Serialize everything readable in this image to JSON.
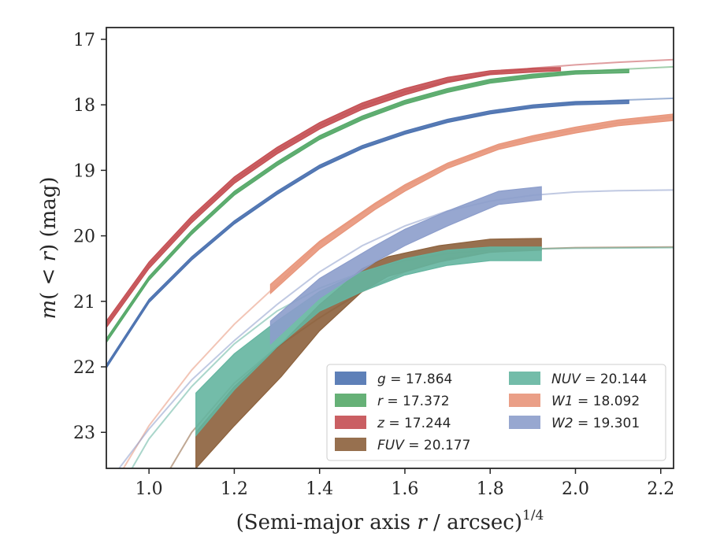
{
  "chart_data": {
    "type": "line",
    "title": "",
    "xlabel": "(Semi-major axis r / arcsec)^{1/4}",
    "xlabel_parts": {
      "main": "(Semi-major axis ",
      "var": "r",
      "rest": " / arcsec)",
      "sup": "1/4"
    },
    "ylabel": "m(<r) (mag)",
    "ylabel_parts": {
      "m": "m",
      "open": "(",
      "lt": " < ",
      "r": "r",
      "close": ")",
      "unit": " (mag)"
    },
    "xlim": [
      0.9,
      2.23
    ],
    "ylim": [
      23.55,
      16.82
    ],
    "y_inverted": true,
    "x_ticks": [
      1.0,
      1.2,
      1.4,
      1.6,
      1.8,
      2.0,
      2.2
    ],
    "x_tick_labels": [
      "1.0",
      "1.2",
      "1.4",
      "1.6",
      "1.8",
      "2.0",
      "2.2"
    ],
    "y_ticks": [
      17,
      18,
      19,
      20,
      21,
      22,
      23
    ],
    "y_tick_labels": [
      "17",
      "18",
      "19",
      "20",
      "21",
      "22",
      "23"
    ],
    "grid": false,
    "legend_position": "lower-right",
    "series": [
      {
        "name": "g = 17.864",
        "label_var": "g",
        "label_value": "17.864",
        "color": "#4c72b0",
        "model": [
          [
            0.9,
            22.0
          ],
          [
            1.0,
            21.0
          ],
          [
            1.1,
            20.35
          ],
          [
            1.2,
            19.8
          ],
          [
            1.3,
            19.35
          ],
          [
            1.4,
            18.95
          ],
          [
            1.5,
            18.65
          ],
          [
            1.6,
            18.43
          ],
          [
            1.7,
            18.25
          ],
          [
            1.8,
            18.12
          ],
          [
            1.9,
            18.03
          ],
          [
            2.0,
            17.97
          ],
          [
            2.1,
            17.93
          ],
          [
            2.23,
            17.9
          ]
        ],
        "band_upper": [
          [
            0.9,
            21.97
          ],
          [
            1.0,
            20.97
          ],
          [
            1.1,
            20.32
          ],
          [
            1.2,
            19.77
          ],
          [
            1.3,
            19.32
          ],
          [
            1.4,
            18.92
          ],
          [
            1.5,
            18.62
          ],
          [
            1.6,
            18.4
          ],
          [
            1.7,
            18.22
          ],
          [
            1.8,
            18.09
          ],
          [
            1.9,
            18.0
          ],
          [
            2.0,
            17.95
          ],
          [
            2.125,
            17.93
          ]
        ],
        "band_lower": [
          [
            0.9,
            22.02
          ],
          [
            1.0,
            21.02
          ],
          [
            1.1,
            20.37
          ],
          [
            1.2,
            19.82
          ],
          [
            1.3,
            19.37
          ],
          [
            1.4,
            18.97
          ],
          [
            1.5,
            18.67
          ],
          [
            1.6,
            18.45
          ],
          [
            1.7,
            18.27
          ],
          [
            1.8,
            18.14
          ],
          [
            1.9,
            18.05
          ],
          [
            2.0,
            18.0
          ],
          [
            2.125,
            17.98
          ]
        ]
      },
      {
        "name": "r = 17.372",
        "label_var": "r",
        "label_value": "17.372",
        "color": "#55a868",
        "model": [
          [
            0.9,
            21.6
          ],
          [
            1.0,
            20.65
          ],
          [
            1.1,
            19.95
          ],
          [
            1.2,
            19.35
          ],
          [
            1.3,
            18.9
          ],
          [
            1.4,
            18.5
          ],
          [
            1.5,
            18.2
          ],
          [
            1.6,
            17.96
          ],
          [
            1.7,
            17.78
          ],
          [
            1.8,
            17.64
          ],
          [
            1.9,
            17.56
          ],
          [
            2.0,
            17.5
          ],
          [
            2.1,
            17.46
          ],
          [
            2.23,
            17.42
          ]
        ],
        "band_upper": [
          [
            0.9,
            21.57
          ],
          [
            1.0,
            20.62
          ],
          [
            1.1,
            19.92
          ],
          [
            1.2,
            19.32
          ],
          [
            1.3,
            18.87
          ],
          [
            1.4,
            18.47
          ],
          [
            1.5,
            18.17
          ],
          [
            1.6,
            17.93
          ],
          [
            1.7,
            17.75
          ],
          [
            1.8,
            17.61
          ],
          [
            1.9,
            17.53
          ],
          [
            2.0,
            17.48
          ],
          [
            2.125,
            17.46
          ]
        ],
        "band_lower": [
          [
            0.9,
            21.63
          ],
          [
            1.0,
            20.68
          ],
          [
            1.1,
            19.98
          ],
          [
            1.2,
            19.38
          ],
          [
            1.3,
            18.93
          ],
          [
            1.4,
            18.53
          ],
          [
            1.5,
            18.23
          ],
          [
            1.6,
            17.99
          ],
          [
            1.7,
            17.81
          ],
          [
            1.8,
            17.67
          ],
          [
            1.9,
            17.59
          ],
          [
            2.0,
            17.53
          ],
          [
            2.125,
            17.51
          ]
        ]
      },
      {
        "name": "z = 17.244",
        "label_var": "z",
        "label_value": "17.244",
        "color": "#c44e52",
        "model": [
          [
            0.9,
            21.35
          ],
          [
            1.0,
            20.45
          ],
          [
            1.1,
            19.75
          ],
          [
            1.2,
            19.15
          ],
          [
            1.3,
            18.7
          ],
          [
            1.4,
            18.32
          ],
          [
            1.5,
            18.02
          ],
          [
            1.6,
            17.8
          ],
          [
            1.7,
            17.64
          ],
          [
            1.8,
            17.52
          ],
          [
            1.9,
            17.44
          ],
          [
            2.0,
            17.39
          ],
          [
            2.1,
            17.35
          ],
          [
            2.23,
            17.31
          ]
        ],
        "band_upper": [
          [
            0.9,
            21.3
          ],
          [
            1.0,
            20.4
          ],
          [
            1.1,
            19.7
          ],
          [
            1.2,
            19.1
          ],
          [
            1.3,
            18.65
          ],
          [
            1.4,
            18.27
          ],
          [
            1.5,
            17.97
          ],
          [
            1.6,
            17.75
          ],
          [
            1.7,
            17.58
          ],
          [
            1.8,
            17.48
          ],
          [
            1.9,
            17.44
          ],
          [
            1.965,
            17.43
          ]
        ],
        "band_lower": [
          [
            0.9,
            21.4
          ],
          [
            1.0,
            20.5
          ],
          [
            1.1,
            19.8
          ],
          [
            1.2,
            19.2
          ],
          [
            1.3,
            18.75
          ],
          [
            1.4,
            18.37
          ],
          [
            1.5,
            18.07
          ],
          [
            1.6,
            17.85
          ],
          [
            1.7,
            17.66
          ],
          [
            1.8,
            17.54
          ],
          [
            1.9,
            17.5
          ],
          [
            1.965,
            17.48
          ]
        ]
      },
      {
        "name": "FUV = 20.177",
        "label_var": "FUV",
        "label_value": "20.177",
        "color": "#8c613c",
        "model": [
          [
            1.05,
            23.55
          ],
          [
            1.1,
            23.0
          ],
          [
            1.2,
            22.25
          ],
          [
            1.3,
            21.7
          ],
          [
            1.4,
            21.25
          ],
          [
            1.5,
            20.85
          ],
          [
            1.6,
            20.55
          ],
          [
            1.7,
            20.35
          ],
          [
            1.8,
            20.25
          ],
          [
            1.9,
            20.2
          ],
          [
            2.0,
            20.18
          ],
          [
            2.23,
            20.17
          ]
        ],
        "band_upper": [
          [
            1.11,
            23.0
          ],
          [
            1.2,
            22.3
          ],
          [
            1.31,
            21.65
          ],
          [
            1.4,
            21.05
          ],
          [
            1.5,
            20.5
          ],
          [
            1.56,
            20.32
          ],
          [
            1.68,
            20.15
          ],
          [
            1.8,
            20.05
          ],
          [
            1.92,
            20.04
          ]
        ],
        "band_lower": [
          [
            1.11,
            23.55
          ],
          [
            1.2,
            22.9
          ],
          [
            1.31,
            22.15
          ],
          [
            1.4,
            21.45
          ],
          [
            1.5,
            20.85
          ],
          [
            1.56,
            20.62
          ],
          [
            1.68,
            20.4
          ],
          [
            1.8,
            20.25
          ],
          [
            1.92,
            20.22
          ]
        ]
      },
      {
        "name": "NUV = 20.144",
        "label_var": "NUV",
        "label_value": "20.144",
        "color": "#64b5a0",
        "model": [
          [
            0.96,
            23.55
          ],
          [
            1.0,
            23.1
          ],
          [
            1.1,
            22.3
          ],
          [
            1.2,
            21.65
          ],
          [
            1.3,
            21.15
          ],
          [
            1.4,
            20.8
          ],
          [
            1.5,
            20.55
          ],
          [
            1.6,
            20.38
          ],
          [
            1.7,
            20.27
          ],
          [
            1.8,
            20.22
          ],
          [
            1.9,
            20.2
          ],
          [
            2.0,
            20.19
          ],
          [
            2.23,
            20.18
          ]
        ],
        "band_upper": [
          [
            1.11,
            22.4
          ],
          [
            1.2,
            21.8
          ],
          [
            1.3,
            21.3
          ],
          [
            1.4,
            20.85
          ],
          [
            1.5,
            20.55
          ],
          [
            1.6,
            20.35
          ],
          [
            1.7,
            20.22
          ],
          [
            1.8,
            20.17
          ],
          [
            1.92,
            20.17
          ]
        ],
        "band_lower": [
          [
            1.11,
            23.05
          ],
          [
            1.2,
            22.35
          ],
          [
            1.3,
            21.7
          ],
          [
            1.4,
            21.15
          ],
          [
            1.5,
            20.85
          ],
          [
            1.6,
            20.6
          ],
          [
            1.7,
            20.45
          ],
          [
            1.8,
            20.38
          ],
          [
            1.92,
            20.38
          ]
        ]
      },
      {
        "name": "W1 = 18.092",
        "label_var": "W1",
        "label_value": "18.092",
        "color": "#e8957a",
        "model": [
          [
            0.94,
            23.55
          ],
          [
            1.0,
            22.9
          ],
          [
            1.1,
            22.05
          ],
          [
            1.2,
            21.35
          ],
          [
            1.3,
            20.75
          ],
          [
            1.4,
            20.1
          ],
          [
            1.53,
            19.52
          ],
          [
            1.6,
            19.25
          ],
          [
            1.7,
            18.92
          ],
          [
            1.8,
            18.67
          ],
          [
            1.9,
            18.5
          ],
          [
            2.0,
            18.38
          ],
          [
            2.1,
            18.28
          ],
          [
            2.23,
            18.18
          ]
        ],
        "band_upper": [
          [
            1.285,
            20.74
          ],
          [
            1.4,
            20.08
          ],
          [
            1.53,
            19.5
          ],
          [
            1.6,
            19.22
          ],
          [
            1.7,
            18.89
          ],
          [
            1.82,
            18.6
          ],
          [
            1.9,
            18.47
          ],
          [
            2.0,
            18.34
          ],
          [
            2.1,
            18.23
          ],
          [
            2.23,
            18.14
          ]
        ],
        "band_lower": [
          [
            1.285,
            20.88
          ],
          [
            1.4,
            20.2
          ],
          [
            1.53,
            19.6
          ],
          [
            1.6,
            19.32
          ],
          [
            1.7,
            18.97
          ],
          [
            1.82,
            18.68
          ],
          [
            1.9,
            18.56
          ],
          [
            2.0,
            18.43
          ],
          [
            2.1,
            18.32
          ],
          [
            2.23,
            18.24
          ]
        ]
      },
      {
        "name": "W2 = 19.301",
        "label_var": "W2",
        "label_value": "19.301",
        "color": "#8c9dcb",
        "model": [
          [
            0.93,
            23.55
          ],
          [
            1.0,
            22.95
          ],
          [
            1.1,
            22.2
          ],
          [
            1.2,
            21.6
          ],
          [
            1.3,
            21.05
          ],
          [
            1.4,
            20.55
          ],
          [
            1.5,
            20.15
          ],
          [
            1.6,
            19.85
          ],
          [
            1.7,
            19.62
          ],
          [
            1.8,
            19.47
          ],
          [
            1.9,
            19.38
          ],
          [
            2.0,
            19.33
          ],
          [
            2.1,
            19.31
          ],
          [
            2.23,
            19.3
          ]
        ],
        "band_upper": [
          [
            1.285,
            21.3
          ],
          [
            1.4,
            20.65
          ],
          [
            1.53,
            20.15
          ],
          [
            1.6,
            19.9
          ],
          [
            1.7,
            19.62
          ],
          [
            1.82,
            19.32
          ],
          [
            1.92,
            19.25
          ]
        ],
        "band_lower": [
          [
            1.285,
            21.65
          ],
          [
            1.4,
            20.95
          ],
          [
            1.53,
            20.4
          ],
          [
            1.6,
            20.15
          ],
          [
            1.7,
            19.85
          ],
          [
            1.82,
            19.52
          ],
          [
            1.92,
            19.45
          ]
        ]
      }
    ]
  }
}
